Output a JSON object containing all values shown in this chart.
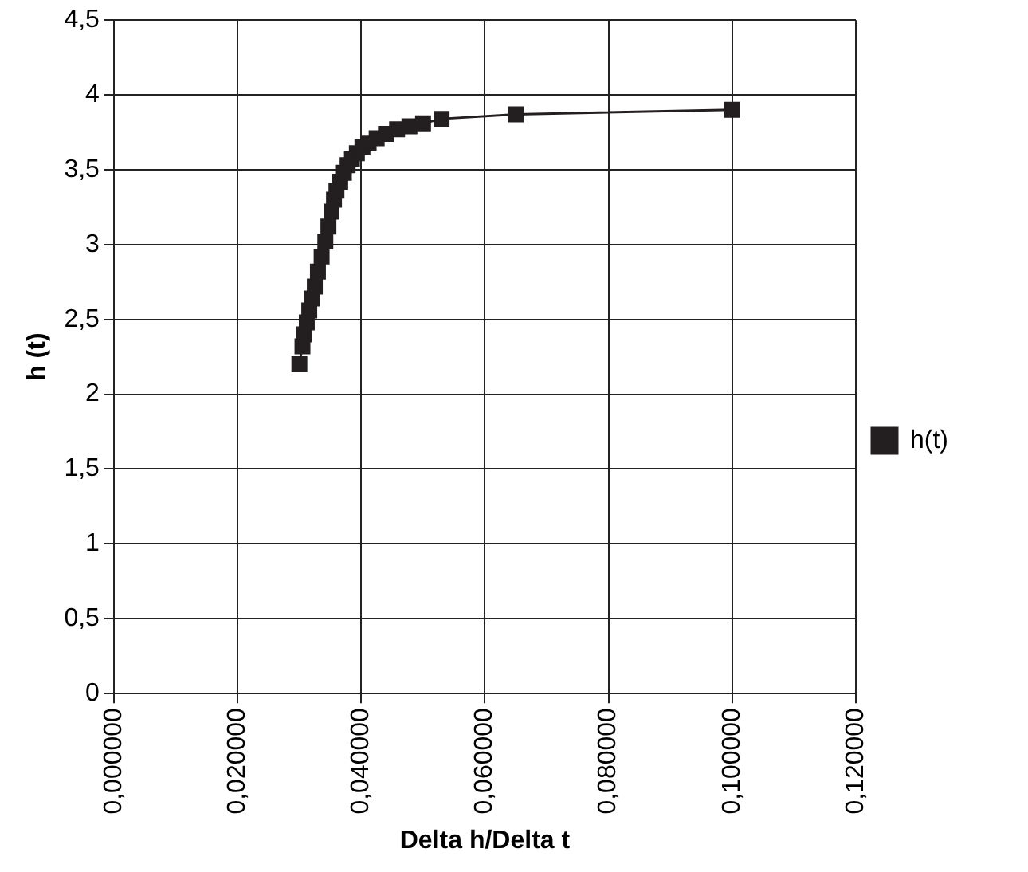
{
  "chart_data": {
    "type": "line",
    "xlabel": "Delta h/Delta t",
    "ylabel": "h (t)",
    "x": [
      0.03,
      0.0305,
      0.0308,
      0.0312,
      0.0316,
      0.032,
      0.0325,
      0.033,
      0.0336,
      0.0342,
      0.0347,
      0.0352,
      0.0356,
      0.036,
      0.0366,
      0.0372,
      0.0378,
      0.0385,
      0.0393,
      0.0402,
      0.0412,
      0.0425,
      0.044,
      0.0458,
      0.0478,
      0.05,
      0.053,
      0.065,
      0.1
    ],
    "series": [
      {
        "name": "h(t)",
        "color": "#231f20",
        "values": [
          2.2,
          2.32,
          2.4,
          2.48,
          2.56,
          2.64,
          2.72,
          2.82,
          2.92,
          3.02,
          3.12,
          3.22,
          3.3,
          3.36,
          3.42,
          3.48,
          3.53,
          3.57,
          3.61,
          3.65,
          3.68,
          3.71,
          3.74,
          3.77,
          3.79,
          3.81,
          3.84,
          3.87,
          3.9
        ]
      }
    ],
    "xlim": [
      0,
      0.12
    ],
    "xticks": [
      {
        "value": 0,
        "label": "0,000000"
      },
      {
        "value": 0.02,
        "label": "0,020000"
      },
      {
        "value": 0.04,
        "label": "0,040000"
      },
      {
        "value": 0.06,
        "label": "0,060000"
      },
      {
        "value": 0.08,
        "label": "0,080000"
      },
      {
        "value": 0.1,
        "label": "0,100000"
      },
      {
        "value": 0.12,
        "label": "0,120000"
      }
    ],
    "ylim": [
      0,
      4.5
    ],
    "yticks": [
      0,
      {
        "value": 0.5,
        "label": "0,5"
      },
      1,
      {
        "value": 1.5,
        "label": "1,5"
      },
      2,
      {
        "value": 2.5,
        "label": "2,5"
      },
      3,
      {
        "value": 3.5,
        "label": "3,5"
      },
      4,
      {
        "value": 4.5,
        "label": "4,5"
      }
    ],
    "grid": true,
    "legend": "right",
    "marker": "square",
    "line_style": "solid"
  }
}
